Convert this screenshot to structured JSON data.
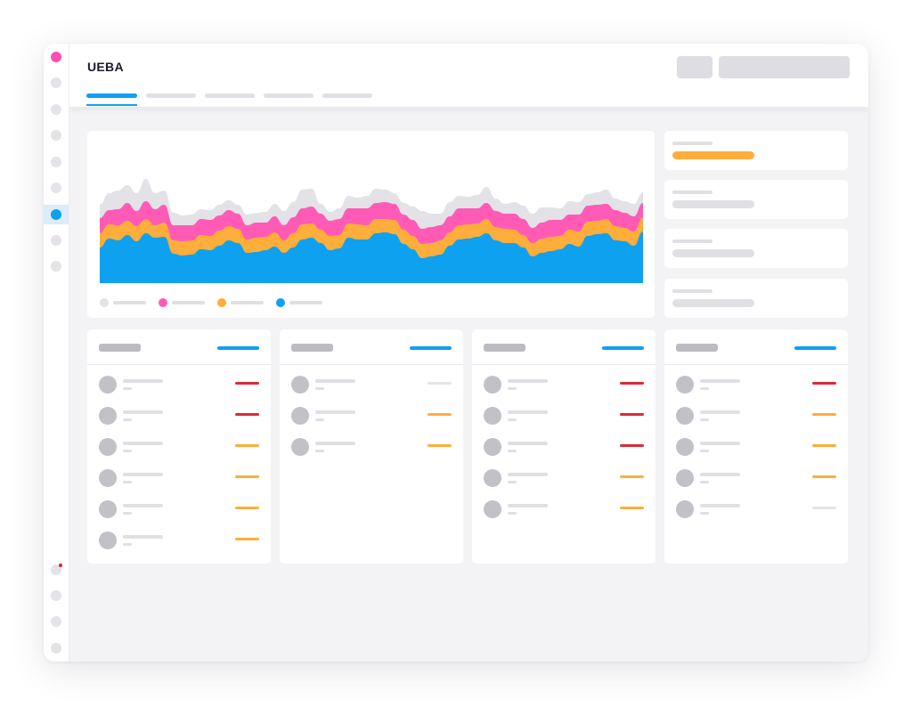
{
  "app": {
    "title": "UEBA",
    "tabs": [
      {
        "name": "tab-1",
        "active": true
      },
      {
        "name": "tab-2",
        "active": false
      },
      {
        "name": "tab-3",
        "active": false
      },
      {
        "name": "tab-4",
        "active": false
      },
      {
        "name": "tab-5",
        "active": false
      }
    ]
  },
  "sidebar": {
    "icons": [
      "nav-icon-1",
      "nav-icon-2",
      "nav-icon-3",
      "nav-icon-4",
      "nav-icon-5",
      "nav-icon-6",
      "nav-icon-7-active",
      "nav-icon-8",
      "nav-icon-9",
      "nav-icon-10",
      "nav-icon-11",
      "nav-icon-12",
      "nav-icon-13"
    ],
    "brand_color": "#ff4fb5",
    "active_color": "#0ea1f0"
  },
  "colors": {
    "blue": "#0ea1f0",
    "orange": "#ffad3b",
    "pink": "#ff5bb6",
    "gray": "#e3e2e7",
    "red": "#d92b3a",
    "light": "#e4e4e8"
  },
  "chart_data": {
    "type": "area",
    "stacked": true,
    "series": [
      {
        "color": "#0ea1f0",
        "values": [
          40,
          50,
          48,
          54,
          47,
          56,
          51,
          52,
          33,
          31,
          32,
          38,
          37,
          42,
          48,
          45,
          34,
          35,
          37,
          41,
          34,
          40,
          49,
          51,
          45,
          37,
          39,
          51,
          49,
          49,
          56,
          57,
          55,
          44,
          38,
          28,
          30,
          32,
          42,
          49,
          50,
          52,
          56,
          48,
          45,
          45,
          40,
          30,
          34,
          36,
          38,
          44,
          41,
          53,
          55,
          56,
          48,
          47,
          42,
          58
        ]
      },
      {
        "color": "#ffad3b",
        "values": [
          16,
          16,
          17,
          16,
          17,
          16,
          14,
          16,
          15,
          16,
          16,
          16,
          16,
          17,
          16,
          16,
          15,
          16,
          15,
          16,
          14,
          16,
          17,
          16,
          15,
          16,
          15,
          16,
          17,
          16,
          16,
          15,
          16,
          16,
          15,
          16,
          15,
          16,
          15,
          16,
          16,
          15,
          16,
          15,
          16,
          15,
          14,
          15,
          16,
          16,
          15,
          16,
          17,
          16,
          15,
          16,
          16,
          15,
          16,
          16
        ]
      },
      {
        "color": "#ff5bb6",
        "values": [
          17,
          16,
          18,
          20,
          17,
          20,
          18,
          20,
          17,
          18,
          17,
          18,
          18,
          17,
          18,
          17,
          16,
          17,
          16,
          18,
          17,
          18,
          18,
          19,
          18,
          17,
          18,
          17,
          18,
          19,
          18,
          19,
          18,
          17,
          18,
          17,
          18,
          17,
          18,
          19,
          18,
          17,
          18,
          18,
          17,
          18,
          18,
          17,
          18,
          19,
          18,
          17,
          19,
          18,
          18,
          17,
          18,
          17,
          17,
          16
        ]
      },
      {
        "color": "#e3e2e7",
        "values": [
          15,
          19,
          21,
          20,
          20,
          25,
          18,
          16,
          14,
          11,
          12,
          11,
          11,
          12,
          11,
          10,
          12,
          11,
          12,
          14,
          16,
          17,
          21,
          20,
          11,
          10,
          12,
          14,
          12,
          14,
          16,
          14,
          12,
          13,
          15,
          20,
          15,
          13,
          16,
          14,
          13,
          15,
          18,
          14,
          11,
          13,
          15,
          16,
          17,
          14,
          13,
          15,
          14,
          13,
          14,
          16,
          13,
          13,
          14,
          12
        ]
      }
    ],
    "legend": [
      {
        "color": "#e3e2e7"
      },
      {
        "color": "#ff5bb6"
      },
      {
        "color": "#ffad3b"
      },
      {
        "color": "#0ea1f0"
      }
    ]
  },
  "side_stats": [
    {
      "highlight": true
    },
    {
      "highlight": false
    },
    {
      "highlight": false
    },
    {
      "highlight": false
    }
  ],
  "lists": [
    {
      "rows": [
        "red",
        "red",
        "orange",
        "orange",
        "orange",
        "orange"
      ]
    },
    {
      "rows": [
        "light",
        "orange",
        "orange"
      ]
    },
    {
      "rows": [
        "red",
        "red",
        "red",
        "orange",
        "orange"
      ]
    },
    {
      "rows": [
        "red",
        "orange",
        "orange",
        "orange",
        "light"
      ]
    }
  ]
}
